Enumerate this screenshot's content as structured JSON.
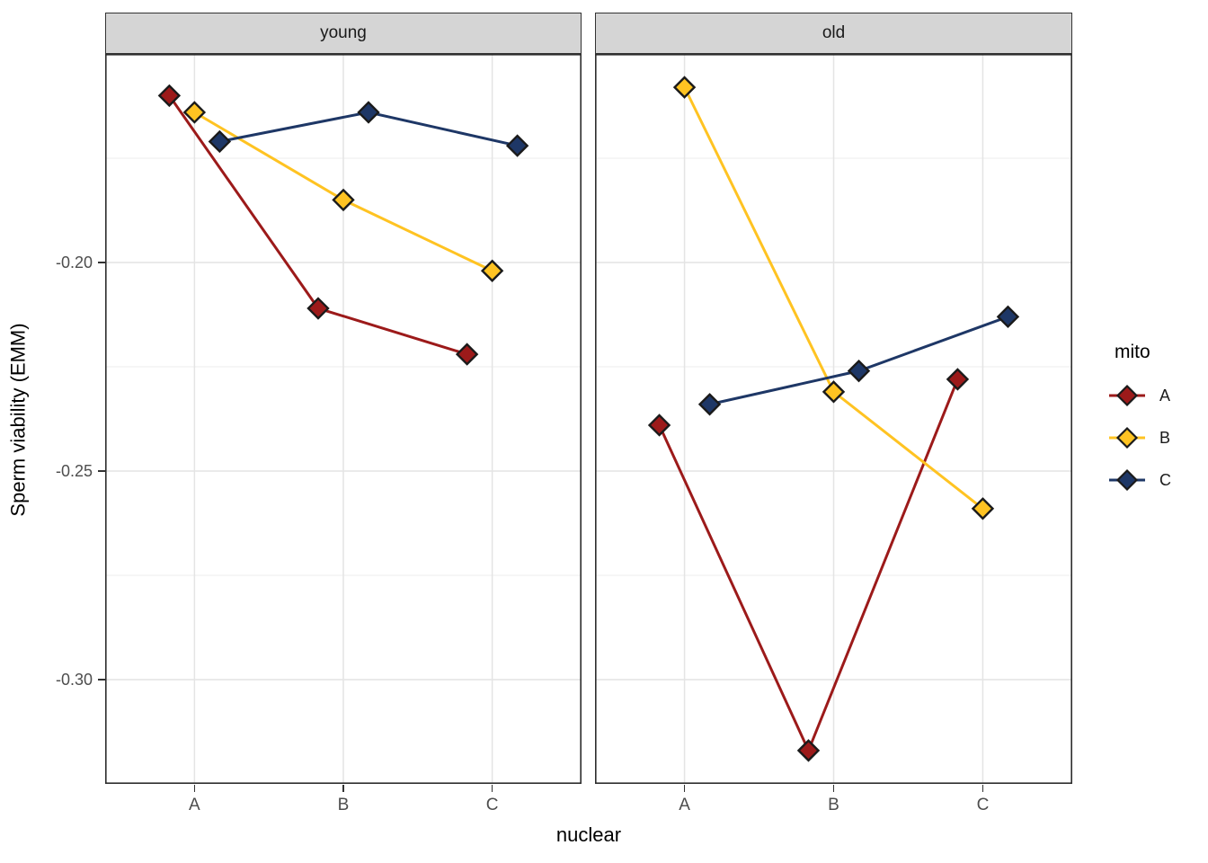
{
  "chart_data": {
    "type": "line",
    "description": "Faceted interaction plot of estimated marginal means, dodged points with connecting lines, diamond markers",
    "categories": [
      "A",
      "B",
      "C"
    ],
    "xlabel": "nuclear",
    "ylabel": "Sperm viability (EMM)",
    "y_ticks": [
      {
        "label": "-0.20",
        "value": -0.2
      },
      {
        "label": "-0.25",
        "value": -0.25
      },
      {
        "label": "-0.30",
        "value": -0.3
      }
    ],
    "y_minor_gridline_values": [
      -0.175,
      -0.225,
      -0.275
    ],
    "y_domain": {
      "top": -0.15,
      "bottom": -0.325
    },
    "grid": true,
    "legend_position": "right",
    "legend": {
      "title": "mito",
      "entries": [
        {
          "label": "A",
          "color": "#9C1A1A"
        },
        {
          "label": "B",
          "color": "#FFC322"
        },
        {
          "label": "C",
          "color": "#1E3766"
        }
      ]
    },
    "facets": [
      {
        "label": "young",
        "series": [
          {
            "name": "A",
            "values": [
              -0.16,
              -0.211,
              -0.222
            ]
          },
          {
            "name": "B",
            "values": [
              -0.164,
              -0.185,
              -0.202
            ]
          },
          {
            "name": "C",
            "values": [
              -0.171,
              -0.164,
              -0.172
            ]
          }
        ]
      },
      {
        "label": "old",
        "series": [
          {
            "name": "A",
            "values": [
              -0.239,
              -0.317,
              -0.228
            ]
          },
          {
            "name": "B",
            "values": [
              -0.158,
              -0.231,
              -0.259
            ]
          },
          {
            "name": "C",
            "values": [
              -0.234,
              -0.226,
              -0.213
            ]
          }
        ]
      }
    ]
  }
}
